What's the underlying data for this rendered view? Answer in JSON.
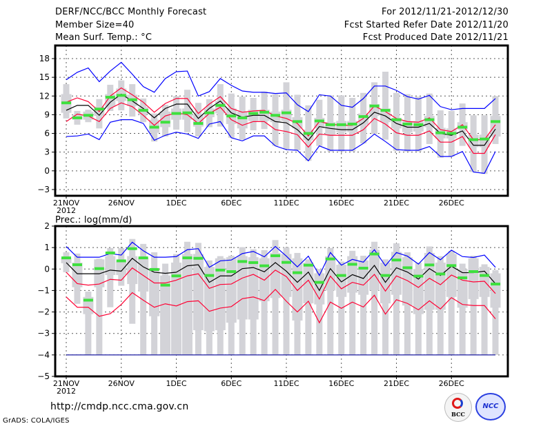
{
  "header": {
    "title": "DERF/NCC/BCC Monthly Forecast",
    "member_size": "Member Size=40",
    "variable": "Mean Surf. Temp.: °C",
    "period": "For 2012/11/21-2012/12/30",
    "started": "Fcst Started Refer Date 2012/11/20",
    "produced": "Fcst Produced Date 2012/11/21"
  },
  "footer": {
    "url": "http://cmdp.ncc.cma.gov.cn",
    "credit": "GrADS: COLA/IGES",
    "logo_left": "BCC",
    "logo_right": "NCC"
  },
  "colors": {
    "gray": "#d3d3d8",
    "green": "#3ee03e",
    "red": "#ff0033",
    "blue": "#0000ff",
    "black": "#000000"
  },
  "chart_data": [
    {
      "type": "box-line",
      "title": "Mean Surf. Temp.: °C",
      "ylim": [
        -4,
        20.1
      ],
      "yticks": [
        18,
        15,
        12,
        9,
        6,
        3,
        0,
        -3
      ],
      "xtick_labels": [
        "21NOV",
        "26NOV",
        "1DEC",
        "6DEC",
        "11DEC",
        "16DEC",
        "21DEC",
        "26DEC"
      ],
      "xtick_year": "2012",
      "days": 40,
      "grid": true,
      "series": {
        "max": [
          14.6,
          15.8,
          16.5,
          14.3,
          16.0,
          17.4,
          15.5,
          13.5,
          12.6,
          14.8,
          15.9,
          16.0,
          12.0,
          12.7,
          14.8,
          13.7,
          12.8,
          12.6,
          12.6,
          12.4,
          12.5,
          10.6,
          9.5,
          12.2,
          12.0,
          10.5,
          10.2,
          11.6,
          13.6,
          13.6,
          12.9,
          11.9,
          11.5,
          12.1,
          10.3,
          9.8,
          10.0,
          10.0,
          10.0,
          11.6
        ],
        "upper": [
          11.0,
          11.7,
          11.1,
          9.5,
          12.0,
          13.3,
          12.2,
          11.0,
          9.4,
          10.8,
          11.6,
          11.6,
          9.2,
          10.7,
          11.9,
          10.0,
          9.4,
          9.6,
          9.7,
          8.8,
          8.4,
          7.6,
          5.6,
          7.9,
          7.5,
          7.3,
          7.3,
          8.4,
          10.4,
          9.5,
          8.4,
          7.9,
          7.8,
          8.5,
          6.6,
          6.3,
          7.4,
          5.0,
          5.0,
          7.4
        ],
        "mean": [
          9.7,
          10.5,
          10.5,
          8.9,
          11.0,
          12.3,
          11.2,
          10.0,
          8.5,
          10.0,
          10.7,
          10.7,
          8.4,
          10.0,
          11.2,
          9.3,
          8.6,
          8.9,
          8.9,
          7.9,
          7.7,
          6.6,
          4.9,
          7.1,
          6.8,
          6.6,
          6.6,
          7.7,
          9.4,
          8.8,
          7.6,
          7.0,
          7.0,
          7.6,
          6.0,
          5.7,
          6.4,
          4.1,
          4.1,
          6.7
        ],
        "lower": [
          7.9,
          9.1,
          8.8,
          7.9,
          10.0,
          10.9,
          10.3,
          8.9,
          7.3,
          8.8,
          9.3,
          9.0,
          7.6,
          9.2,
          10.2,
          8.2,
          7.3,
          7.9,
          7.9,
          6.6,
          6.3,
          5.8,
          3.8,
          5.9,
          5.7,
          5.7,
          5.7,
          6.6,
          8.4,
          7.5,
          6.1,
          5.7,
          5.7,
          6.4,
          4.6,
          4.6,
          5.5,
          2.8,
          2.8,
          5.8
        ],
        "min": [
          5.5,
          5.6,
          5.9,
          5.0,
          7.8,
          8.2,
          8.2,
          7.6,
          4.9,
          5.7,
          6.2,
          5.9,
          5.2,
          7.5,
          7.9,
          5.3,
          4.8,
          5.6,
          5.6,
          4.0,
          3.4,
          3.3,
          1.6,
          4.0,
          3.3,
          3.3,
          3.3,
          4.4,
          5.9,
          4.7,
          3.4,
          3.3,
          3.3,
          3.9,
          2.3,
          2.3,
          3.1,
          -0.2,
          -0.4,
          3.1
        ],
        "marker": [
          10.9,
          8.5,
          8.9,
          9.9,
          11.8,
          12.1,
          11.4,
          9.7,
          7.0,
          7.8,
          9.2,
          9.3,
          7.6,
          9.3,
          10.5,
          8.8,
          8.5,
          9.2,
          9.4,
          8.9,
          9.3,
          7.9,
          6.0,
          8.0,
          7.4,
          7.4,
          7.5,
          8.7,
          10.4,
          9.7,
          8.2,
          7.5,
          7.4,
          8.2,
          6.1,
          6.0,
          7.0,
          5.0,
          5.1,
          7.9
        ],
        "whisker_hi": [
          13.9,
          9.6,
          9.8,
          11.5,
          13.8,
          14.5,
          13.9,
          11.6,
          9.2,
          10.6,
          12.0,
          13.0,
          10.9,
          11.5,
          13.9,
          12.4,
          11.9,
          11.7,
          12.7,
          12.3,
          14.2,
          12.2,
          10.5,
          11.4,
          12.1,
          12.1,
          11.7,
          12.5,
          14.2,
          15.9,
          12.5,
          12.3,
          11.9,
          12.4,
          9.7,
          9.6,
          10.8,
          8.9,
          8.9,
          12.0
        ],
        "whisker_lo": [
          8.4,
          7.4,
          7.8,
          6.8,
          9.6,
          9.7,
          8.7,
          7.8,
          4.7,
          5.5,
          6.6,
          6.2,
          5.5,
          7.0,
          7.1,
          5.3,
          5.0,
          6.5,
          6.7,
          4.0,
          3.5,
          3.3,
          1.6,
          4.0,
          3.1,
          3.1,
          3.1,
          4.4,
          5.9,
          5.0,
          3.2,
          3.1,
          3.1,
          4.3,
          2.1,
          2.3,
          4.0,
          -0.2,
          -0.5,
          4.3
        ],
        "box_hi": [
          12.3,
          9.0,
          9.5,
          10.3,
          12.3,
          13.2,
          12.2,
          10.2,
          8.2,
          9.5,
          10.0,
          10.0,
          9.0,
          10.0,
          11.2,
          10.0,
          9.5,
          9.8,
          9.8,
          9.5,
          9.8,
          8.6,
          6.6,
          8.5,
          7.8,
          8.0,
          8.0,
          9.2,
          10.7,
          10.0,
          8.5,
          8.0,
          8.0,
          8.8,
          6.9,
          6.8,
          7.8,
          5.8,
          5.8,
          8.8
        ],
        "box_lo": [
          9.3,
          8.2,
          8.2,
          8.8,
          10.3,
          11.2,
          10.4,
          9.0,
          6.1,
          7.0,
          8.2,
          8.2,
          7.1,
          8.6,
          9.2,
          7.5,
          6.8,
          8.0,
          8.0,
          7.8,
          8.0,
          6.8,
          4.9,
          6.8,
          5.8,
          6.2,
          6.2,
          7.4,
          8.8,
          7.8,
          6.8,
          6.2,
          6.3,
          7.0,
          5.2,
          5.2,
          6.6,
          3.8,
          3.8,
          5.5
        ]
      }
    },
    {
      "type": "box-line",
      "title": "Prec.: log(mm/d)",
      "ylim": [
        -5,
        2
      ],
      "yticks": [
        2,
        1,
        0,
        -1,
        -2,
        -3,
        -4,
        -5
      ],
      "xtick_labels": [
        "21NOV",
        "26NOV",
        "1DEC",
        "6DEC",
        "11DEC",
        "16DEC",
        "21DEC",
        "26DEC"
      ],
      "xtick_year": "2012",
      "days": 40,
      "grid": true,
      "series": {
        "max": [
          1.05,
          0.55,
          0.55,
          0.55,
          0.72,
          0.65,
          1.25,
          0.85,
          0.55,
          0.55,
          0.58,
          0.9,
          0.95,
          0.08,
          0.38,
          0.42,
          0.72,
          0.82,
          0.57,
          1.05,
          0.6,
          0.1,
          0.6,
          -0.3,
          0.77,
          0.18,
          0.45,
          0.32,
          0.9,
          0.15,
          0.77,
          0.6,
          0.23,
          0.77,
          0.43,
          0.88,
          0.58,
          0.54,
          0.65,
          0.08
        ],
        "upper": [
          -0.15,
          -0.68,
          -0.75,
          -0.7,
          -0.48,
          -0.52,
          0.05,
          -0.3,
          -0.65,
          -0.65,
          -0.52,
          -0.32,
          -0.22,
          -0.9,
          -0.72,
          -0.7,
          -0.42,
          -0.25,
          -0.52,
          -0.05,
          -0.35,
          -1.0,
          -0.52,
          -1.4,
          -0.33,
          -0.92,
          -0.62,
          -0.75,
          -0.25,
          -1.03,
          -0.32,
          -0.54,
          -0.86,
          -0.43,
          -0.73,
          -0.28,
          -0.52,
          -0.6,
          -0.57,
          -1.14
        ],
        "mean": [
          0.3,
          -0.22,
          -0.22,
          -0.22,
          -0.05,
          -0.1,
          0.5,
          0.1,
          -0.15,
          -0.2,
          -0.15,
          0.15,
          0.2,
          -0.62,
          -0.32,
          -0.32,
          0.02,
          0.07,
          -0.13,
          0.3,
          -0.1,
          -0.62,
          -0.14,
          -1.0,
          0.02,
          -0.6,
          -0.26,
          -0.44,
          0.17,
          -0.62,
          0.06,
          -0.14,
          -0.47,
          0.02,
          -0.3,
          0.13,
          -0.17,
          -0.17,
          -0.1,
          -0.68
        ],
        "lower": [
          -1.3,
          -1.78,
          -1.78,
          -2.2,
          -2.08,
          -1.65,
          -1.1,
          -1.45,
          -1.78,
          -1.62,
          -1.72,
          -1.52,
          -1.48,
          -1.97,
          -1.82,
          -1.75,
          -1.38,
          -1.3,
          -1.47,
          -0.95,
          -1.5,
          -2.0,
          -1.5,
          -2.5,
          -1.54,
          -1.83,
          -1.54,
          -1.77,
          -1.22,
          -2.1,
          -1.43,
          -1.6,
          -1.9,
          -1.48,
          -1.86,
          -1.33,
          -1.65,
          -1.7,
          -1.7,
          -2.32
        ],
        "min": [
          -4,
          -4,
          -4,
          -4,
          -4,
          -4,
          -4,
          -4,
          -4,
          -4,
          -4,
          -4,
          -4,
          -4,
          -4,
          -4,
          -4,
          -4,
          -4,
          -4,
          -4,
          -4,
          -4,
          -4,
          -4,
          -4,
          -4,
          -4,
          -4,
          -4,
          -4,
          -4,
          -4,
          -4,
          -4,
          -4,
          -4,
          -4,
          -4,
          -4
        ],
        "marker": [
          0.52,
          0.2,
          -1.45,
          0.02,
          0.75,
          0.38,
          0.95,
          0.52,
          -0.02,
          -0.75,
          -0.32,
          0.52,
          0.5,
          -0.3,
          -0.05,
          -0.12,
          0.35,
          0.3,
          0.15,
          0.62,
          0.31,
          -0.17,
          0.18,
          -0.62,
          0.47,
          -0.3,
          0.22,
          0.04,
          0.7,
          -0.3,
          0.42,
          0.06,
          -0.33,
          0.19,
          -0.23,
          0.16,
          -0.41,
          -0.12,
          -0.3,
          -0.7
        ],
        "whisker_hi": [
          0.78,
          0.72,
          -1.05,
          0.48,
          0.98,
          0.98,
          1.4,
          1.17,
          0.78,
          0.25,
          0.7,
          1.27,
          1.22,
          0.4,
          0.6,
          0.62,
          1.02,
          0.92,
          0.88,
          1.35,
          1.0,
          0.75,
          0.45,
          0.0,
          0.98,
          0.35,
          0.85,
          0.62,
          1.27,
          0.45,
          1.2,
          0.78,
          0.3,
          1.05,
          0.6,
          0.85,
          0.25,
          0.62,
          0.22,
          -0.05
        ],
        "whisker_lo": [
          -0.15,
          -1.62,
          -4,
          -4,
          -1.78,
          -0.78,
          -2.55,
          -4,
          -4,
          -4,
          -4,
          -4,
          -4,
          -4,
          -4,
          -4,
          -4,
          -4,
          -4,
          -4,
          -4,
          -4,
          -4,
          -4,
          -4,
          -4,
          -4,
          -4,
          -4,
          -4,
          -4,
          -4,
          -4,
          -4,
          -4,
          -4,
          -4,
          -4,
          -4,
          -4
        ],
        "box_hi": [
          0.5,
          0.3,
          -1.3,
          0.45,
          0.6,
          0.35,
          0.6,
          0.5,
          0.0,
          -0.3,
          0.3,
          0.7,
          0.7,
          0.1,
          0.5,
          0.55,
          0.6,
          0.55,
          0.5,
          0.75,
          0.7,
          0.5,
          0.3,
          -0.2,
          0.6,
          0.2,
          0.6,
          0.4,
          0.9,
          0.3,
          0.8,
          0.55,
          0.0,
          0.75,
          0.3,
          0.7,
          0.0,
          0.5,
          0.1,
          -0.2
        ],
        "box_lo": [
          0.27,
          -0.85,
          -2.1,
          -0.85,
          -0.28,
          -0.28,
          -0.7,
          -1.05,
          -2.2,
          -4,
          -4,
          -4,
          -2.85,
          -2.9,
          -2.85,
          -2.5,
          -2.35,
          -2.35,
          -1.5,
          -1.35,
          -1.3,
          -2.4,
          -1.6,
          -1.65,
          -1.0,
          -1.3,
          -1.1,
          -1.2,
          -1.0,
          -1.6,
          -1.2,
          -1.7,
          -2.1,
          -1.9,
          -1.9,
          -1.3,
          -1.8,
          -1.4,
          -1.3,
          -1.8
        ]
      }
    }
  ]
}
